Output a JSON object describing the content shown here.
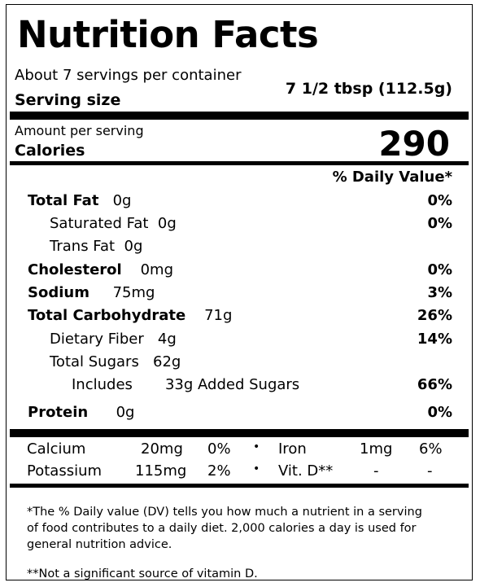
{
  "title": "Nutrition Facts",
  "servings_per_container": "About 7 servings per container",
  "serving_size_label": "Serving size",
  "serving_size_value": "7 1/2 tbsp (112.5g)",
  "amount_per_serving": "Amount per serving",
  "calories_label": "Calories",
  "calories_value": "290",
  "daily_value_header": "% Daily Value*",
  "nutrients": [
    {
      "name": "Total Fat",
      "amount": "0g",
      "dv": "0%"
    },
    {
      "name": "Saturated Fat",
      "amount": "0g",
      "dv": "0%"
    },
    {
      "name": "Trans Fat",
      "amount": "0g",
      "dv": ""
    },
    {
      "name": "Cholesterol",
      "amount": "0mg",
      "dv": "0%"
    },
    {
      "name": "Sodium",
      "amount": "75mg",
      "dv": "3%"
    },
    {
      "name": "Total Carbohydrate",
      "amount": "71g",
      "dv": "26%"
    },
    {
      "name": "Dietary Fiber",
      "amount": "4g",
      "dv": "14%"
    },
    {
      "name": "Total Sugars",
      "amount": "62g",
      "dv": ""
    },
    {
      "name": "Includes",
      "amount": "33g",
      "suffix": "Added Sugars",
      "dv": "66%"
    },
    {
      "name": "Protein",
      "amount": "0g",
      "dv": "0%"
    }
  ],
  "minerals": [
    {
      "left_name": "Calcium",
      "left_amount": "20mg",
      "left_dv": "0%",
      "right_name": "Iron",
      "right_amount": "1mg",
      "right_dv": "6%"
    },
    {
      "left_name": "Potassium",
      "left_amount": "115mg",
      "left_dv": "2%",
      "right_name": "Vit. D**",
      "right_amount": "-",
      "right_dv": "-"
    }
  ],
  "separator": "•",
  "footnote_dv": "*The % Daily value (DV) tells you how much a nutrient in a serving of food contributes to a daily diet. 2,000 calories a day is used for general nutrition advice.",
  "footnote_vitd": "**Not a significant source of vitamin D."
}
